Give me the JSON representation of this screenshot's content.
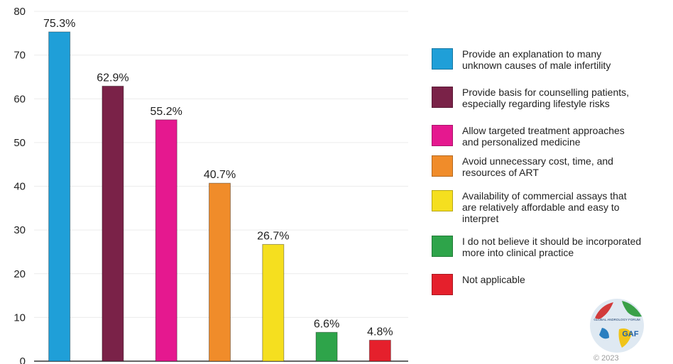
{
  "chart_data": {
    "type": "bar",
    "categories": [
      "Provide an explanation to many unknown causes of male infertility",
      "Provide basis for counselling patients, especially regarding lifestyle risks",
      "Allow targeted treatment approaches and personalized medicine",
      "Avoid unnecessary cost, time, and resources of ART",
      "Availability of commercial assays that are relatively affordable and easy to interpret",
      "I do not believe it should be incorporated more into clinical practice",
      "Not applicable"
    ],
    "values": [
      75.3,
      62.9,
      55.2,
      40.7,
      26.7,
      6.6,
      4.8
    ],
    "data_labels": [
      "75.3%",
      "62.9%",
      "55.2%",
      "40.7%",
      "26.7%",
      "6.6%",
      "4.8%"
    ],
    "colors": [
      "#1f9fd8",
      "#7a2248",
      "#e5188f",
      "#f08c2a",
      "#f5df1f",
      "#2ea44a",
      "#e5202c"
    ],
    "ylim": [
      0,
      80
    ],
    "yticks": [
      "0",
      "10",
      "20",
      "30",
      "40",
      "50",
      "60",
      "70",
      "80"
    ],
    "grid": true,
    "legend_position": "right"
  },
  "legend": {
    "items": [
      {
        "label": "Provide an explanation to many\nunknown causes of male infertility",
        "color": "#1f9fd8"
      },
      {
        "label": "Provide basis for counselling patients,\nespecially regarding lifestyle risks",
        "color": "#7a2248"
      },
      {
        "label": "Allow targeted treatment approaches\nand personalized medicine",
        "color": "#e5188f"
      },
      {
        "label": "Avoid unnecessary cost, time, and\nresources of ART",
        "color": "#f08c2a"
      },
      {
        "label": "Availability of commercial assays that\nare relatively affordable and easy to\ninterpret",
        "color": "#f5df1f"
      },
      {
        "label": "I do not believe it should be incorporated\nmore into clinical practice",
        "color": "#2ea44a"
      },
      {
        "label": "Not applicable",
        "color": "#e5202c"
      }
    ]
  },
  "logo": {
    "icon": "globe-logo-icon",
    "text": "GLOBAL ANDROLOGY FORUM",
    "mark": "GAF"
  },
  "copyright": "© 2023"
}
